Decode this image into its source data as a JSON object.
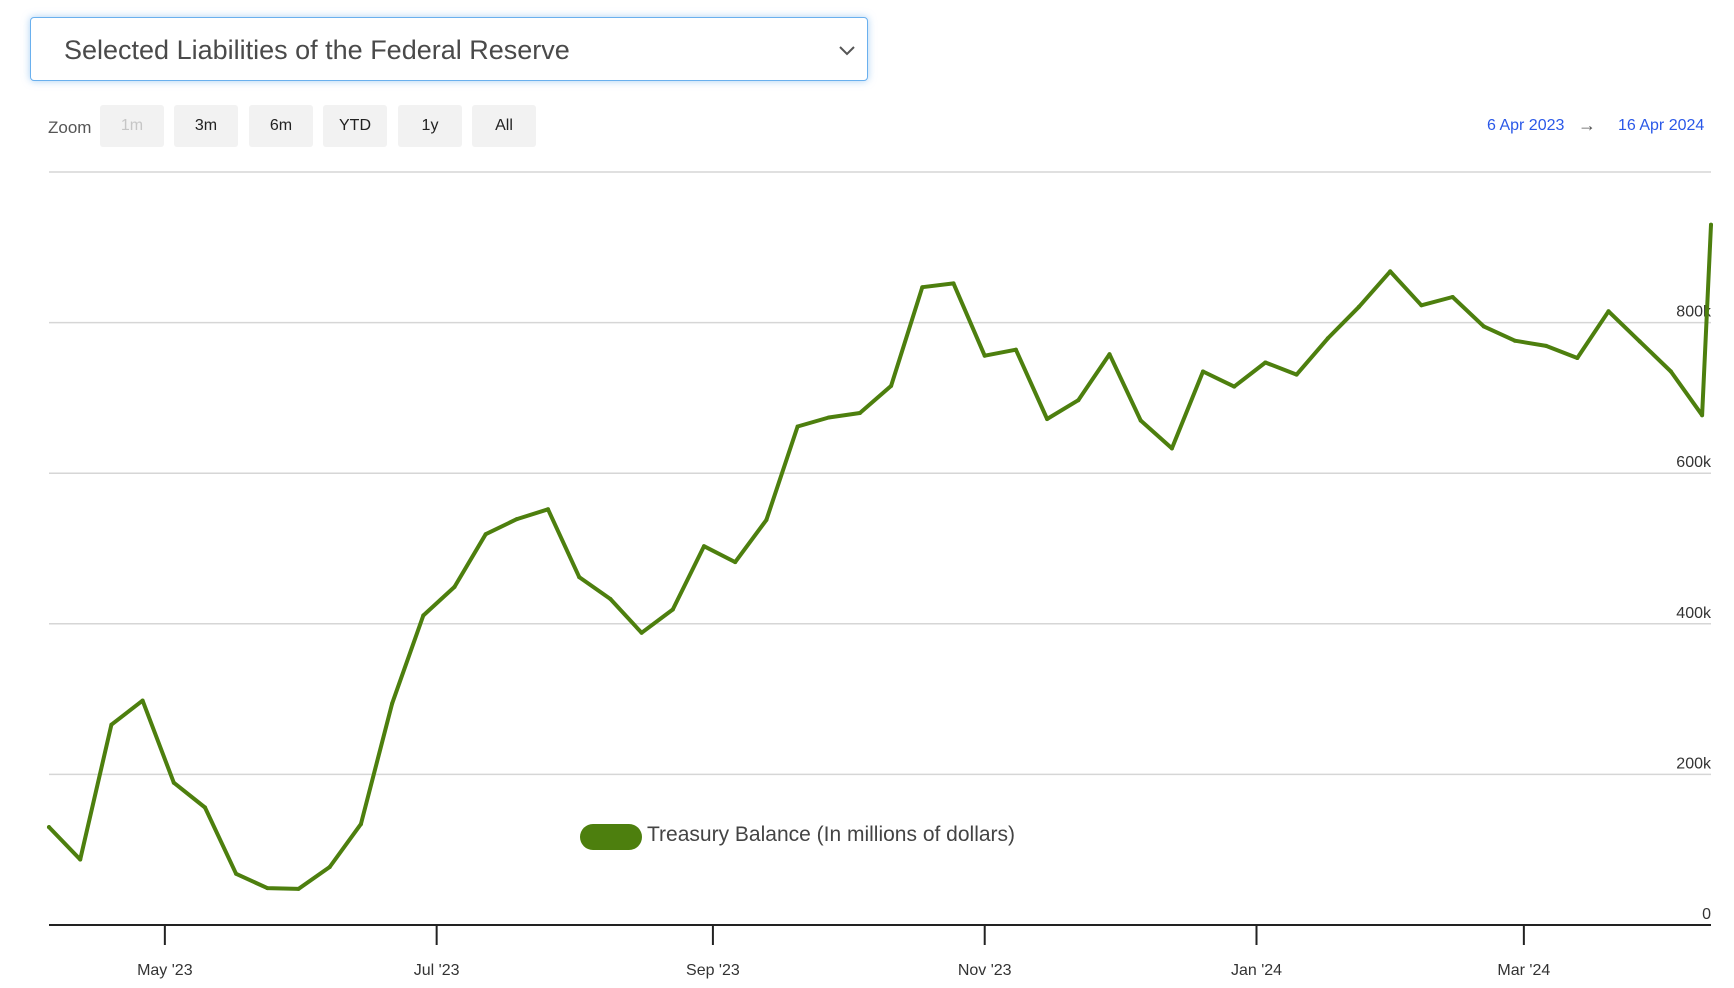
{
  "header": {
    "dropdown_label": "Selected Liabilities of the Federal Reserve"
  },
  "zoom": {
    "label": "Zoom",
    "buttons": [
      "1m",
      "3m",
      "6m",
      "YTD",
      "1y",
      "All"
    ],
    "disabled": "1m"
  },
  "range": {
    "from": "6 Apr 2023",
    "arrow": "→",
    "to": "16 Apr 2024"
  },
  "colors": {
    "series": "#4d7f0e",
    "grid": "#d6d6d6",
    "axis": "#222222",
    "date_link": "#2a58e8"
  },
  "chart_data": {
    "type": "line",
    "x_type": "date",
    "x_range": [
      "2023-04-05",
      "2024-04-12"
    ],
    "ylim": [
      0,
      1000000
    ],
    "y_ticks": [
      0,
      200000,
      400000,
      600000,
      800000
    ],
    "y_tick_labels": [
      "0",
      "200k",
      "400k",
      "600k",
      "800k"
    ],
    "x_ticks": [
      "2023-05-01",
      "2023-07-01",
      "2023-09-01",
      "2023-11-01",
      "2024-01-01",
      "2024-03-01"
    ],
    "x_tick_labels": [
      "May '23",
      "Jul '23",
      "Sep '23",
      "Nov '23",
      "Jan '24",
      "Mar '24"
    ],
    "grid": true,
    "legend": "bottom-center",
    "series": [
      {
        "name": "Treasury Balance (In millions of dollars)",
        "x": [
          "2023-04-05",
          "2023-04-12",
          "2023-04-19",
          "2023-04-26",
          "2023-05-03",
          "2023-05-10",
          "2023-05-17",
          "2023-05-24",
          "2023-05-31",
          "2023-06-07",
          "2023-06-14",
          "2023-06-21",
          "2023-06-28",
          "2023-07-05",
          "2023-07-12",
          "2023-07-19",
          "2023-07-26",
          "2023-08-02",
          "2023-08-09",
          "2023-08-16",
          "2023-08-23",
          "2023-08-30",
          "2023-09-06",
          "2023-09-13",
          "2023-09-20",
          "2023-09-27",
          "2023-10-04",
          "2023-10-11",
          "2023-10-18",
          "2023-10-25",
          "2023-11-01",
          "2023-11-08",
          "2023-11-15",
          "2023-11-22",
          "2023-11-29",
          "2023-12-06",
          "2023-12-13",
          "2023-12-20",
          "2023-12-27",
          "2024-01-03",
          "2024-01-10",
          "2024-01-17",
          "2024-01-24",
          "2024-01-31",
          "2024-02-07",
          "2024-02-14",
          "2024-02-21",
          "2024-02-28",
          "2024-03-06",
          "2024-03-13",
          "2024-03-20",
          "2024-03-27",
          "2024-04-03",
          "2024-04-10",
          "2024-04-12"
        ],
        "values": [
          130000,
          87000,
          266000,
          298000,
          189000,
          156000,
          68000,
          49000,
          48000,
          77000,
          134000,
          294000,
          411000,
          449000,
          519000,
          539000,
          552000,
          462000,
          433000,
          388000,
          419000,
          503000,
          482000,
          538000,
          662000,
          674000,
          680000,
          716000,
          847000,
          852000,
          756000,
          764000,
          672000,
          697000,
          758000,
          670000,
          633000,
          735000,
          715000,
          747000,
          731000,
          779000,
          821000,
          868000,
          823000,
          834000,
          795000,
          776000,
          769000,
          753000,
          815000,
          775000,
          735000,
          677000,
          930000
        ]
      }
    ]
  }
}
